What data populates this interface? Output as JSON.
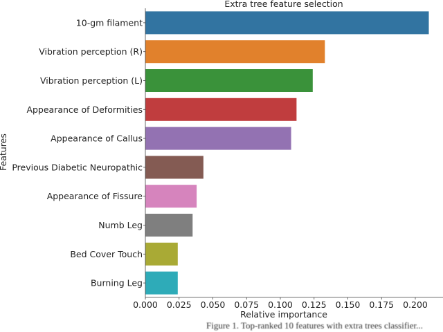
{
  "chart_data": {
    "type": "bar",
    "orientation": "horizontal",
    "title": "Extra tree feature selection",
    "xlabel": "Relative importance",
    "ylabel": "Features",
    "xlim": [
      0,
      0.21
    ],
    "xticks": [
      "0.000",
      "0.025",
      "0.050",
      "0.075",
      "0.100",
      "0.125",
      "0.150",
      "0.175",
      "0.200"
    ],
    "grid": false,
    "categories": [
      "10-gm filament",
      "Vibration perception (R)",
      "Vibration perception (L)",
      "Appearance of Deformities",
      "Appearance of Callus",
      "Previous Diabetic Neuropathic",
      "Appearance of Fissure",
      "Numb Leg",
      "Bed Cover Touch",
      "Burning Leg"
    ],
    "values": [
      0.21,
      0.133,
      0.124,
      0.112,
      0.108,
      0.043,
      0.038,
      0.035,
      0.024,
      0.024
    ],
    "colors": [
      "#3274a1",
      "#e1812c",
      "#3a923a",
      "#c03d3e",
      "#9372b2",
      "#845b53",
      "#d684bd",
      "#7f7f7f",
      "#a9aa35",
      "#2eabb8"
    ]
  },
  "caption": "Figure 1. Top-ranked 10 features with extra trees classifier..."
}
